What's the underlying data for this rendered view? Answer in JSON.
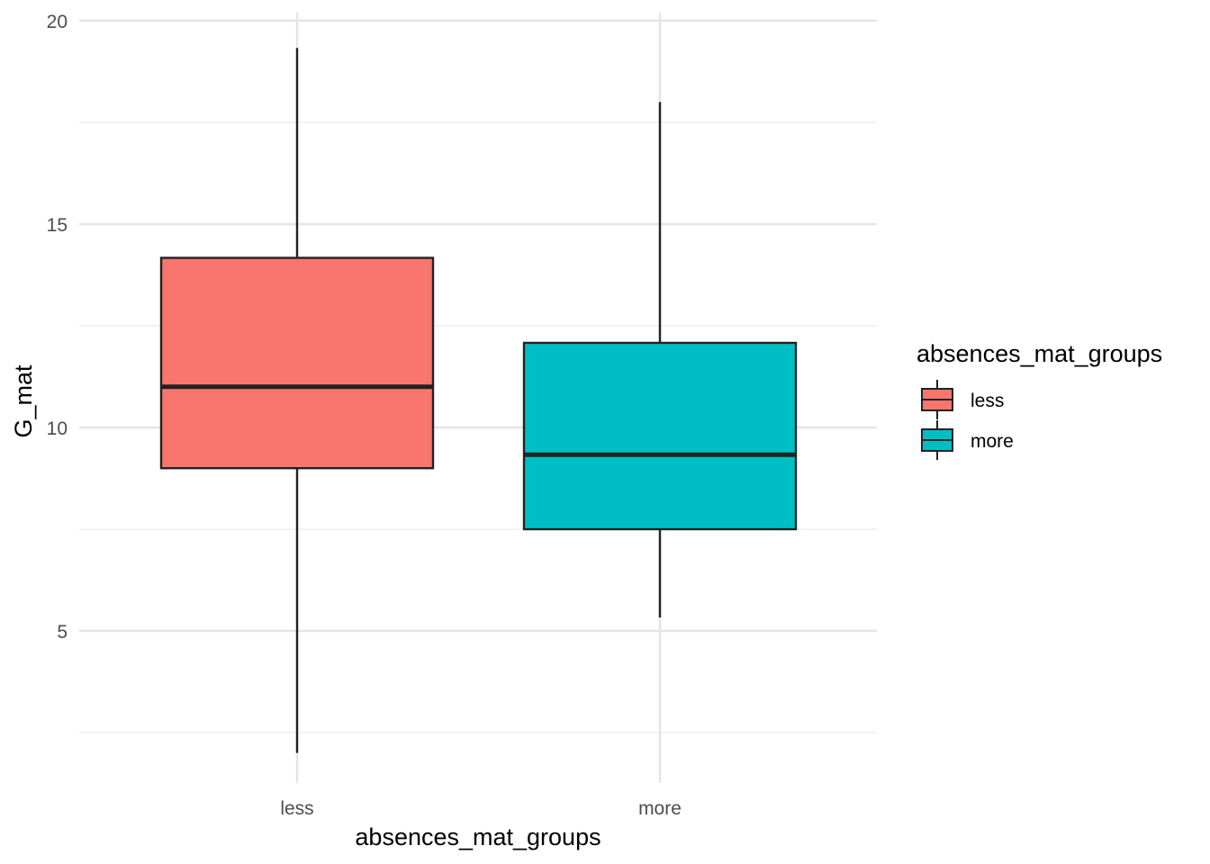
{
  "chart_data": {
    "type": "boxplot",
    "xlabel": "absences_mat_groups",
    "ylabel": "G_mat",
    "categories": [
      "less",
      "more"
    ],
    "ylim": [
      1.3,
      20.2
    ],
    "y_ticks": [
      "5",
      "10",
      "15",
      "20"
    ],
    "y_tick_values": [
      5,
      10,
      15,
      20
    ],
    "y_minor_values": [
      2.5,
      7.5,
      12.5,
      17.5
    ],
    "grid": true,
    "boxes": [
      {
        "category": "less",
        "whisker_low": 2.0,
        "q1": 9.0,
        "median": 11.0,
        "q3": 14.17,
        "whisker_high": 19.33,
        "color": "#F8766D"
      },
      {
        "category": "more",
        "whisker_low": 5.33,
        "q1": 7.5,
        "median": 9.33,
        "q3": 12.08,
        "whisker_high": 18.0,
        "color": "#00BFC4"
      }
    ],
    "legend": {
      "title": "absences_mat_groups",
      "position": "right",
      "items": [
        {
          "label": "less",
          "color": "#F8766D"
        },
        {
          "label": "more",
          "color": "#00BFC4"
        }
      ]
    }
  }
}
